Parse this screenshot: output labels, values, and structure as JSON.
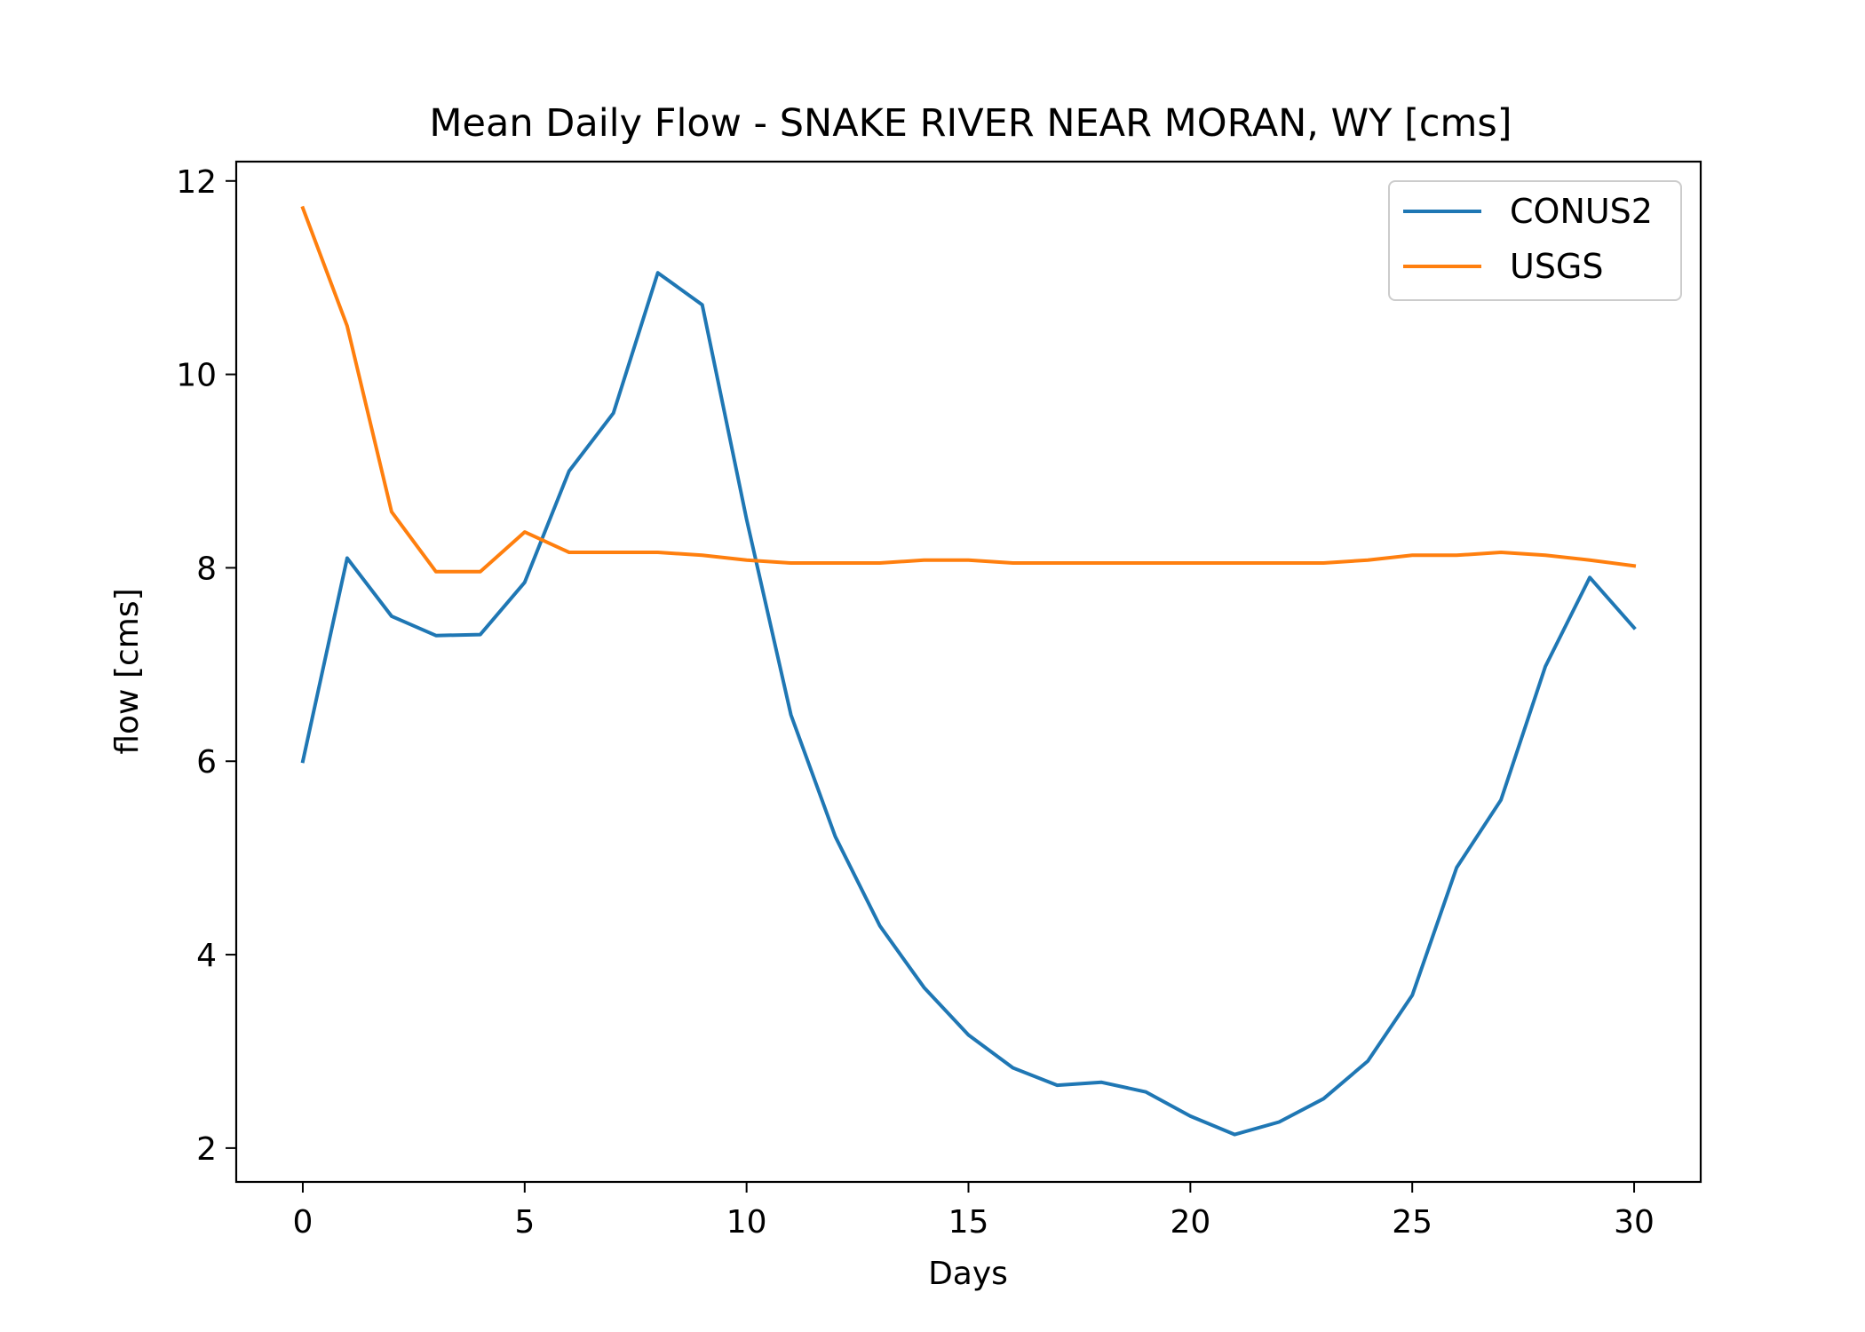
{
  "chart_data": {
    "type": "line",
    "title": "Mean Daily Flow - SNAKE RIVER NEAR MORAN, WY [cms]",
    "xlabel": "Days",
    "ylabel": "flow [cms]",
    "xlim": [
      -1.5,
      31.5
    ],
    "ylim": [
      1.65,
      12.2
    ],
    "xticks": [
      0,
      5,
      10,
      15,
      20,
      25,
      30
    ],
    "yticks": [
      2,
      4,
      6,
      8,
      10,
      12
    ],
    "grid": false,
    "legend_position": "top-right",
    "x": [
      0,
      1,
      2,
      3,
      4,
      5,
      6,
      7,
      8,
      9,
      10,
      11,
      12,
      13,
      14,
      15,
      16,
      17,
      18,
      19,
      20,
      21,
      22,
      23,
      24,
      25,
      26,
      27,
      28,
      29,
      30
    ],
    "series": [
      {
        "name": "CONUS2",
        "color": "#1f77b4",
        "values": [
          6.0,
          8.1,
          7.5,
          7.3,
          7.31,
          7.85,
          9.0,
          9.6,
          11.05,
          10.72,
          8.5,
          6.48,
          5.22,
          4.3,
          3.66,
          3.17,
          2.83,
          2.65,
          2.68,
          2.58,
          2.33,
          2.14,
          2.27,
          2.51,
          2.9,
          3.58,
          4.9,
          5.6,
          6.98,
          7.9,
          7.38
        ]
      },
      {
        "name": "USGS",
        "color": "#ff7f0e",
        "values": [
          11.72,
          10.5,
          8.58,
          7.96,
          7.96,
          8.37,
          8.16,
          8.16,
          8.16,
          8.13,
          8.08,
          8.05,
          8.05,
          8.05,
          8.08,
          8.08,
          8.05,
          8.05,
          8.05,
          8.05,
          8.05,
          8.05,
          8.05,
          8.05,
          8.08,
          8.13,
          8.13,
          8.16,
          8.13,
          8.08,
          8.02
        ]
      }
    ]
  }
}
